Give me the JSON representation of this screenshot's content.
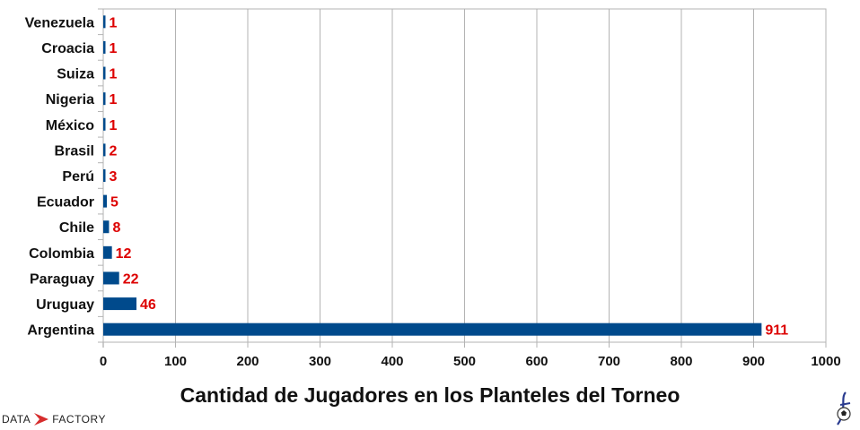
{
  "chart_data": {
    "type": "bar",
    "orientation": "horizontal",
    "title": "Cantidad de Jugadores en los Planteles del Torneo",
    "categories": [
      "Venezuela",
      "Croacia",
      "Suiza",
      "Nigeria",
      "México",
      "Brasil",
      "Perú",
      "Ecuador",
      "Chile",
      "Colombia",
      "Paraguay",
      "Uruguay",
      "Argentina"
    ],
    "values": [
      1,
      1,
      1,
      1,
      1,
      2,
      3,
      5,
      8,
      12,
      22,
      46,
      911
    ],
    "xlim": [
      0,
      1000
    ],
    "xticks": [
      "0",
      "100",
      "200",
      "300",
      "400",
      "500",
      "600",
      "700",
      "800",
      "900",
      "1000"
    ],
    "grid": true,
    "bar_color": "#004a8c",
    "label_color": "#dd0000"
  },
  "branding": {
    "logo_left_a": "DATA",
    "logo_left_b": "FACTORY",
    "logo_left_color": "#d62d2d"
  }
}
